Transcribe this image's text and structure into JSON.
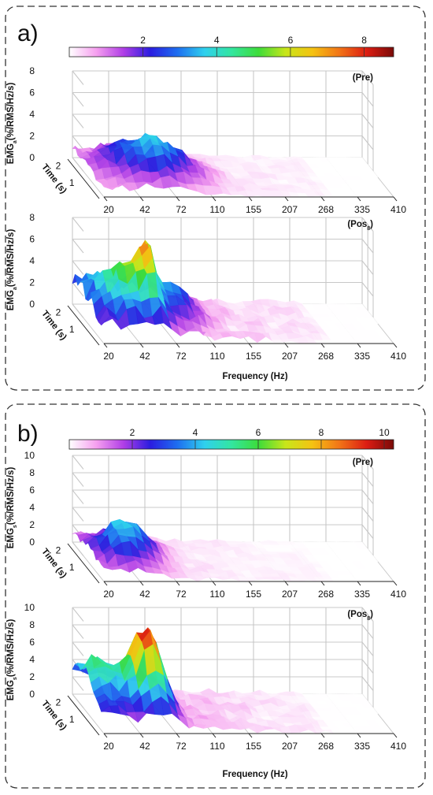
{
  "panels": [
    {
      "letter": "a)",
      "colorbar": {
        "min": 0,
        "max": 8.8,
        "ticks": [
          "2",
          "4",
          "6",
          "8"
        ],
        "tick_values": [
          2,
          4,
          6,
          8
        ]
      },
      "xlabel": "Frequency (Hz)",
      "plots": [
        {
          "condition": "(Pre)",
          "zlabel_main": "EMG",
          "zlabel_sub": "a",
          "zlabel_unit": "(%/RMS/Hz/s)",
          "zmax": 8,
          "zticks": [
            "0",
            "2",
            "4",
            "6",
            "8"
          ],
          "zscale_max": 8,
          "peak_value": 3.9
        },
        {
          "condition": "(Pos",
          "condition_sub": "8",
          "condition_end": ")",
          "zlabel_main": "EMG",
          "zlabel_sub": "a",
          "zlabel_unit": "(%/RMS/Hz/s)",
          "zmax": 8,
          "zticks": [
            "0",
            "2",
            "4",
            "6",
            "8"
          ],
          "zscale_max": 8,
          "peak_value": 7.5
        }
      ]
    },
    {
      "letter": "b)",
      "colorbar": {
        "min": 0,
        "max": 10.3,
        "ticks": [
          "2",
          "4",
          "6",
          "8",
          "10"
        ],
        "tick_values": [
          2,
          4,
          6,
          8,
          10
        ]
      },
      "xlabel": "Frequency (Hz)",
      "plots": [
        {
          "condition": "(Pre)",
          "zlabel_main": "EMG",
          "zlabel_sub": "s",
          "zlabel_unit": "(%/RMS/Hz/s)",
          "zmax": 10,
          "zticks": [
            "0",
            "2",
            "4",
            "6",
            "8",
            "10"
          ],
          "zscale_max": 10,
          "peak_value": 4.5
        },
        {
          "condition": "(Pos",
          "condition_sub": "8",
          "condition_end": ")",
          "zlabel_main": "EMG",
          "zlabel_sub": "s",
          "zlabel_unit": "(%/RMS/Hz/s)",
          "zmax": 10,
          "zticks": [
            "0",
            "2",
            "4",
            "6",
            "8",
            "10"
          ],
          "zscale_max": 10,
          "peak_value": 10.0
        }
      ]
    }
  ],
  "chart_data": [
    {
      "type": "surface",
      "panel": "a",
      "condition": "Pre",
      "x_label": "Frequency (Hz)",
      "x_ticks": [
        "20",
        "42",
        "72",
        "110",
        "155",
        "207",
        "268",
        "335",
        "410"
      ],
      "y_label": "Time (s)",
      "y_ticks": [
        "1",
        "2"
      ],
      "z_label": "EMG (%/RMS/Hz/s)",
      "z_range": [
        0,
        8
      ],
      "z_peak_approx": 3.9,
      "peak_frequency_region": "42-72"
    },
    {
      "type": "surface",
      "panel": "a",
      "condition": "Pos8",
      "x_label": "Frequency (Hz)",
      "x_ticks": [
        "20",
        "42",
        "72",
        "110",
        "155",
        "207",
        "268",
        "335",
        "410"
      ],
      "y_label": "Time (s)",
      "y_ticks": [
        "1",
        "2"
      ],
      "z_label": "EMG (%/RMS/Hz/s)",
      "z_range": [
        0,
        8
      ],
      "z_peak_approx": 7.5,
      "peak_frequency_region": "42-72"
    },
    {
      "type": "surface",
      "panel": "b",
      "condition": "Pre",
      "x_label": "Frequency (Hz)",
      "x_ticks": [
        "20",
        "42",
        "72",
        "110",
        "155",
        "207",
        "268",
        "335",
        "410"
      ],
      "y_label": "Time (s)",
      "y_ticks": [
        "1",
        "2"
      ],
      "z_label": "EMG (%/RMS/Hz/s)",
      "z_range": [
        0,
        10
      ],
      "z_peak_approx": 4.5,
      "peak_frequency_region": "20-42"
    },
    {
      "type": "surface",
      "panel": "b",
      "condition": "Pos8",
      "x_label": "Frequency (Hz)",
      "x_ticks": [
        "20",
        "42",
        "72",
        "110",
        "155",
        "207",
        "268",
        "335",
        "410"
      ],
      "y_label": "Time (s)",
      "y_ticks": [
        "1",
        "2"
      ],
      "z_label": "EMG (%/RMS/Hz/s)",
      "z_range": [
        0,
        10
      ],
      "z_peak_approx": 10.0,
      "peak_frequency_region": "42-72"
    }
  ],
  "colors": {
    "panel_border": "#333333",
    "grid": "#c8c8c8",
    "jet_stops": [
      "#ffffff",
      "#f6a0ef",
      "#b03ee6",
      "#2a1de0",
      "#1e6ef0",
      "#2fd0ee",
      "#33e6a0",
      "#3ddc3a",
      "#c8e61a",
      "#f5c212",
      "#f27417",
      "#dc1d12",
      "#7a0a08"
    ]
  }
}
